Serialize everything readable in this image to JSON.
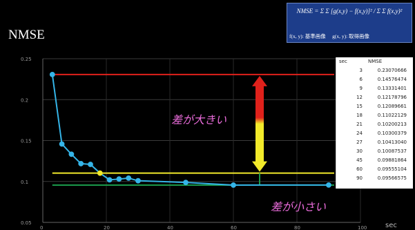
{
  "page": {
    "title": "NMSE",
    "formula": "NMSE = Σ Σ [g(x,y) − f(x,y)]² / Σ Σ f(x,y)²",
    "formula_legend": "f(x, y): 基準画像　 g(x, y): 取得画像",
    "annotation_big": "差が大きい",
    "annotation_small": "差が小さい",
    "x_unit": "sec"
  },
  "table": {
    "headers": [
      "sec",
      "NMSE"
    ],
    "rows": [
      [
        "3",
        "0.23070666"
      ],
      [
        "6",
        "0.14576474"
      ],
      [
        "9",
        "0.13331401"
      ],
      [
        "12",
        "0.12178796"
      ],
      [
        "15",
        "0.12089661"
      ],
      [
        "18",
        "0.11022129"
      ],
      [
        "21",
        "0.10200213"
      ],
      [
        "24",
        "0.10300379"
      ],
      [
        "27",
        "0.10413040"
      ],
      [
        "30",
        "0.10087537"
      ],
      [
        "45",
        "0.09881864"
      ],
      [
        "60",
        "0.09555104"
      ],
      [
        "90",
        "0.09566575"
      ]
    ]
  },
  "chart_data": {
    "type": "line",
    "x": [
      3,
      6,
      9,
      12,
      15,
      18,
      21,
      24,
      27,
      30,
      45,
      60,
      90
    ],
    "series": [
      {
        "values": [
          0.2307,
          0.1458,
          0.1333,
          0.1218,
          0.1209,
          0.1102,
          0.102,
          0.103,
          0.1041,
          0.1009,
          0.0988,
          0.0956,
          0.0957
        ]
      }
    ],
    "xlim": [
      0,
      100
    ],
    "ylim": [
      0.05,
      0.25
    ],
    "x_ticks": [
      "0",
      "20",
      "40",
      "60",
      "80",
      "100"
    ],
    "y_ticks": [
      "0.05",
      "0.1",
      "0.15",
      "0.2",
      "0.25"
    ],
    "reference_lines": [
      0.2307,
      0.1102,
      0.0956
    ],
    "line_color": "#35b5e8",
    "ref_colors": [
      "#e0211b",
      "#f2ea2a",
      "#1a9a4a"
    ],
    "grid": true
  }
}
